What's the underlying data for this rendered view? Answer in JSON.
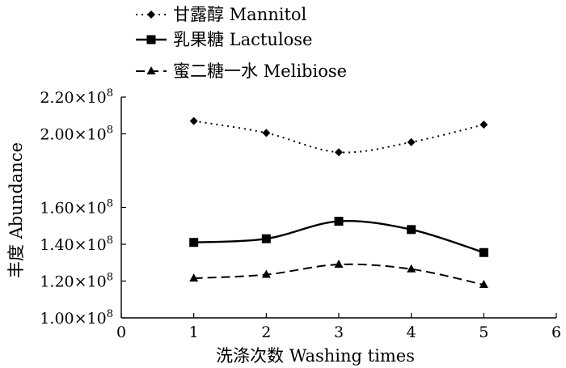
{
  "chart_data": {
    "type": "line",
    "xlabel": "洗涤次数  Washing times",
    "ylabel": "丰度  Abundance",
    "xlim": [
      0,
      6
    ],
    "ylim": [
      100000000,
      220000000
    ],
    "x_ticks": [
      0,
      1,
      2,
      3,
      4,
      5,
      6
    ],
    "y_ticks": [
      {
        "value": 100000000,
        "mantissa": "1.00×10",
        "exp": "8"
      },
      {
        "value": 120000000,
        "mantissa": "1.20×10",
        "exp": "8"
      },
      {
        "value": 140000000,
        "mantissa": "1.40×10",
        "exp": "8"
      },
      {
        "value": 160000000,
        "mantissa": "1.60×10",
        "exp": "8"
      },
      {
        "value": 200000000,
        "mantissa": "2.00×10",
        "exp": "8"
      },
      {
        "value": 220000000,
        "mantissa": "2.20×10",
        "exp": "8"
      }
    ],
    "grid": false,
    "legend_position": "top-left",
    "x": [
      1,
      2,
      3,
      4,
      5
    ],
    "series": [
      {
        "name": "甘露醇  Mannitol",
        "values": [
          207000000,
          200500000,
          190000000,
          195500000,
          205000000
        ],
        "marker": "diamond",
        "line_style": "dotted"
      },
      {
        "name": "乳果糖  Lactulose",
        "values": [
          141000000,
          143000000,
          152500000,
          148000000,
          135500000
        ],
        "marker": "square",
        "line_style": "solid"
      },
      {
        "name": "蜜二糖一水  Melibiose",
        "values": [
          121500000,
          123500000,
          129000000,
          126500000,
          118000000
        ],
        "marker": "triangle",
        "line_style": "dashed"
      }
    ]
  }
}
